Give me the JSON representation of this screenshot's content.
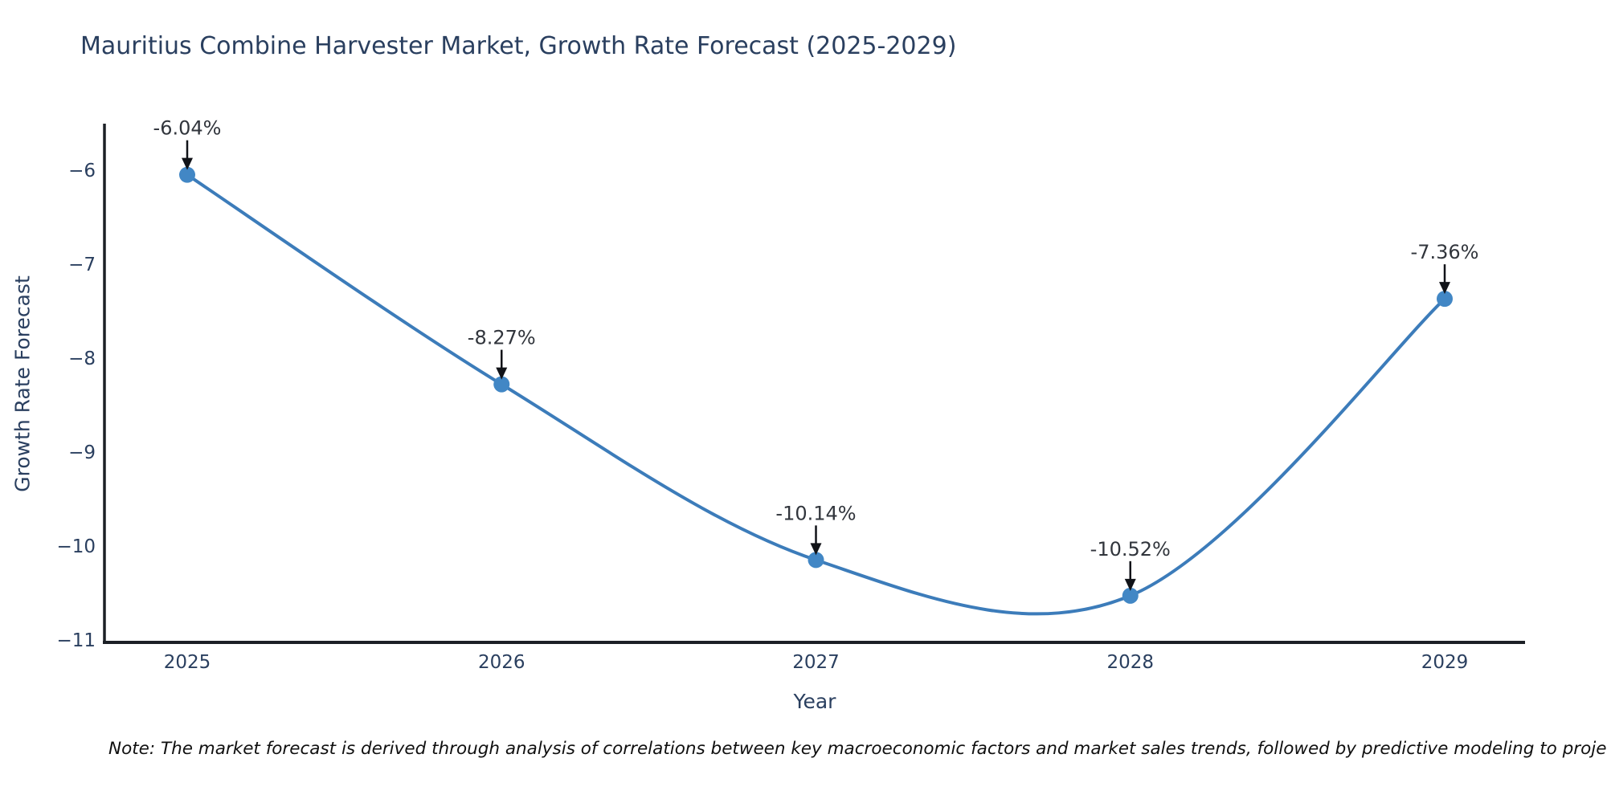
{
  "page": {
    "background_color": "#ffffff"
  },
  "chart": {
    "title": "Mauritius Combine Harvester Market, Growth Rate Forecast (2025-2029)",
    "xlabel": "Year",
    "ylabel": "Growth Rate Forecast",
    "note": "Note: The market forecast is derived through analysis of correlations between key macroeconomic factors and market sales trends, followed by predictive modeling to project future sales."
  },
  "chart_data": {
    "type": "line",
    "title": "Mauritius Combine Harvester Market, Growth Rate Forecast (2025-2029)",
    "xlabel": "Year",
    "ylabel": "Growth Rate Forecast",
    "x": [
      2025,
      2026,
      2027,
      2028,
      2029
    ],
    "values": [
      -6.04,
      -8.27,
      -10.14,
      -10.52,
      -7.36
    ],
    "point_labels": [
      "-6.04%",
      "-8.27%",
      "-10.14%",
      "-10.52%",
      "-7.36%"
    ],
    "yticks": [
      -6,
      -7,
      -8,
      -9,
      -10,
      -11
    ],
    "ylim": [
      -11,
      -5.5
    ],
    "grid": false,
    "legend_position": "none",
    "line_shape": "spline",
    "markers": true,
    "line_color": "#3c7cba",
    "marker_color": "#4287c5",
    "axis_color": "#1c2026",
    "tick_text_color": "#2a3f5f",
    "annotation_text_color": "#31353c",
    "annotation_arrow_color": "#111318"
  }
}
